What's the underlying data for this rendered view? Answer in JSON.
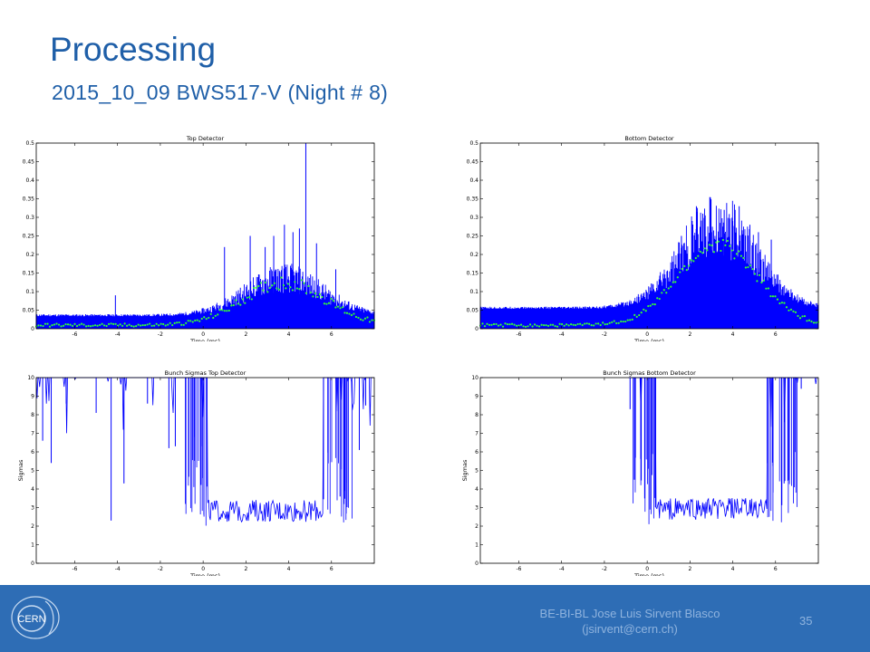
{
  "slide": {
    "title": "Processing",
    "subtitle": "2015_10_09  BWS517-V  (Night # 8)",
    "footer_line1": "BE-BI-BL Jose Luis Sirvent Blasco",
    "footer_line2": "(jsirvent@cern.ch)",
    "page_number": "35",
    "logo_text": "CERN"
  },
  "colors": {
    "title": "#1f5fa8",
    "footer_bg": "#2e6db5",
    "signal": "#0000ff",
    "markers": "#33ff33"
  },
  "chart_data": [
    {
      "type": "line",
      "title": "Top Detector",
      "xlabel": "Time (ms)",
      "ylabel": "",
      "xlim": [
        -7.8,
        8
      ],
      "ylim": [
        0,
        0.5
      ],
      "xticks": [
        -6,
        -4,
        -2,
        0,
        2,
        4,
        6
      ],
      "yticks": [
        0,
        0.05,
        0.1,
        0.15,
        0.2,
        0.25,
        0.3,
        0.35,
        0.4,
        0.45,
        0.5
      ],
      "baseline": 0.035,
      "envelope": {
        "center": 3.8,
        "width": 2.6,
        "amp": 0.085,
        "start": -7.8,
        "end": 8
      },
      "spikes": [
        [
          -4.1,
          0.09
        ],
        [
          1,
          0.22
        ],
        [
          2.2,
          0.25
        ],
        [
          2.9,
          0.22
        ],
        [
          3.3,
          0.25
        ],
        [
          3.8,
          0.28
        ],
        [
          4.2,
          0.26
        ],
        [
          4.5,
          0.27
        ],
        [
          4.8,
          0.5
        ],
        [
          5.3,
          0.23
        ],
        [
          6.2,
          0.16
        ]
      ],
      "markers": {
        "peak": 0.1
      }
    },
    {
      "type": "line",
      "title": "Bottom Detector",
      "xlabel": "Time (ms)",
      "ylabel": "",
      "xlim": [
        -7.8,
        8
      ],
      "ylim": [
        0,
        0.5
      ],
      "xticks": [
        -6,
        -4,
        -2,
        0,
        2,
        4,
        6
      ],
      "yticks": [
        0,
        0.05,
        0.1,
        0.15,
        0.2,
        0.25,
        0.3,
        0.35,
        0.4,
        0.45,
        0.5
      ],
      "baseline": 0.055,
      "envelope": {
        "center": 3.3,
        "width": 2.5,
        "amp": 0.19,
        "start": -7.8,
        "end": 8
      },
      "spikes": [
        [
          1.6,
          0.25
        ],
        [
          2.3,
          0.33
        ],
        [
          2.6,
          0.31
        ],
        [
          3,
          0.26
        ],
        [
          3.6,
          0.32
        ],
        [
          4,
          0.29
        ],
        [
          4.3,
          0.33
        ],
        [
          4.8,
          0.28
        ],
        [
          5.2,
          0.26
        ],
        [
          5.8,
          0.24
        ]
      ],
      "markers": {
        "peak": 0.2
      }
    },
    {
      "type": "line",
      "title": "Bunch Sigmas Top Detector",
      "xlabel": "Time (ms)",
      "ylabel": "Sigmas",
      "xlim": [
        -7.8,
        8
      ],
      "ylim": [
        0,
        10
      ],
      "xticks": [
        -6,
        -4,
        -2,
        0,
        2,
        4,
        6
      ],
      "yticks": [
        0,
        1,
        2,
        3,
        4,
        5,
        6,
        7,
        8,
        9,
        10
      ],
      "valley": {
        "start": 0.2,
        "end": 5.6,
        "level": 2.7
      },
      "dips": [
        [
          -7.5,
          6.6
        ],
        [
          -7.1,
          5.4
        ],
        [
          -6.4,
          8.6
        ],
        [
          -5,
          8.1
        ],
        [
          -4.3,
          2.3
        ],
        [
          -3.7,
          4.3
        ],
        [
          -2.6,
          8.6
        ],
        [
          -1.6,
          6.2
        ],
        [
          -1.3,
          6.3
        ],
        [
          -0.4,
          6.8
        ],
        [
          -0.1,
          6.3
        ],
        [
          6.4,
          3.6
        ],
        [
          7.3,
          6.1
        ],
        [
          7.6,
          8.5
        ]
      ]
    },
    {
      "type": "line",
      "title": "Bunch Sigmas Bottom Detector",
      "xlabel": "Time (ms)",
      "ylabel": "Sigmas",
      "xlim": [
        -7.8,
        8
      ],
      "ylim": [
        0,
        10
      ],
      "xticks": [
        -6,
        -4,
        -2,
        0,
        2,
        4,
        6
      ],
      "yticks": [
        0,
        1,
        2,
        3,
        4,
        5,
        6,
        7,
        8,
        9,
        10
      ],
      "valley": {
        "start": 0.4,
        "end": 5.6,
        "level": 2.8
      },
      "dips": [
        [
          -0.8,
          8.3
        ],
        [
          -0.6,
          4.5
        ],
        [
          -0.3,
          6.9
        ],
        [
          -0.1,
          5.6
        ],
        [
          6.4,
          4.3
        ],
        [
          7.2,
          9.4
        ]
      ],
      "empty_before": -0.9
    }
  ]
}
